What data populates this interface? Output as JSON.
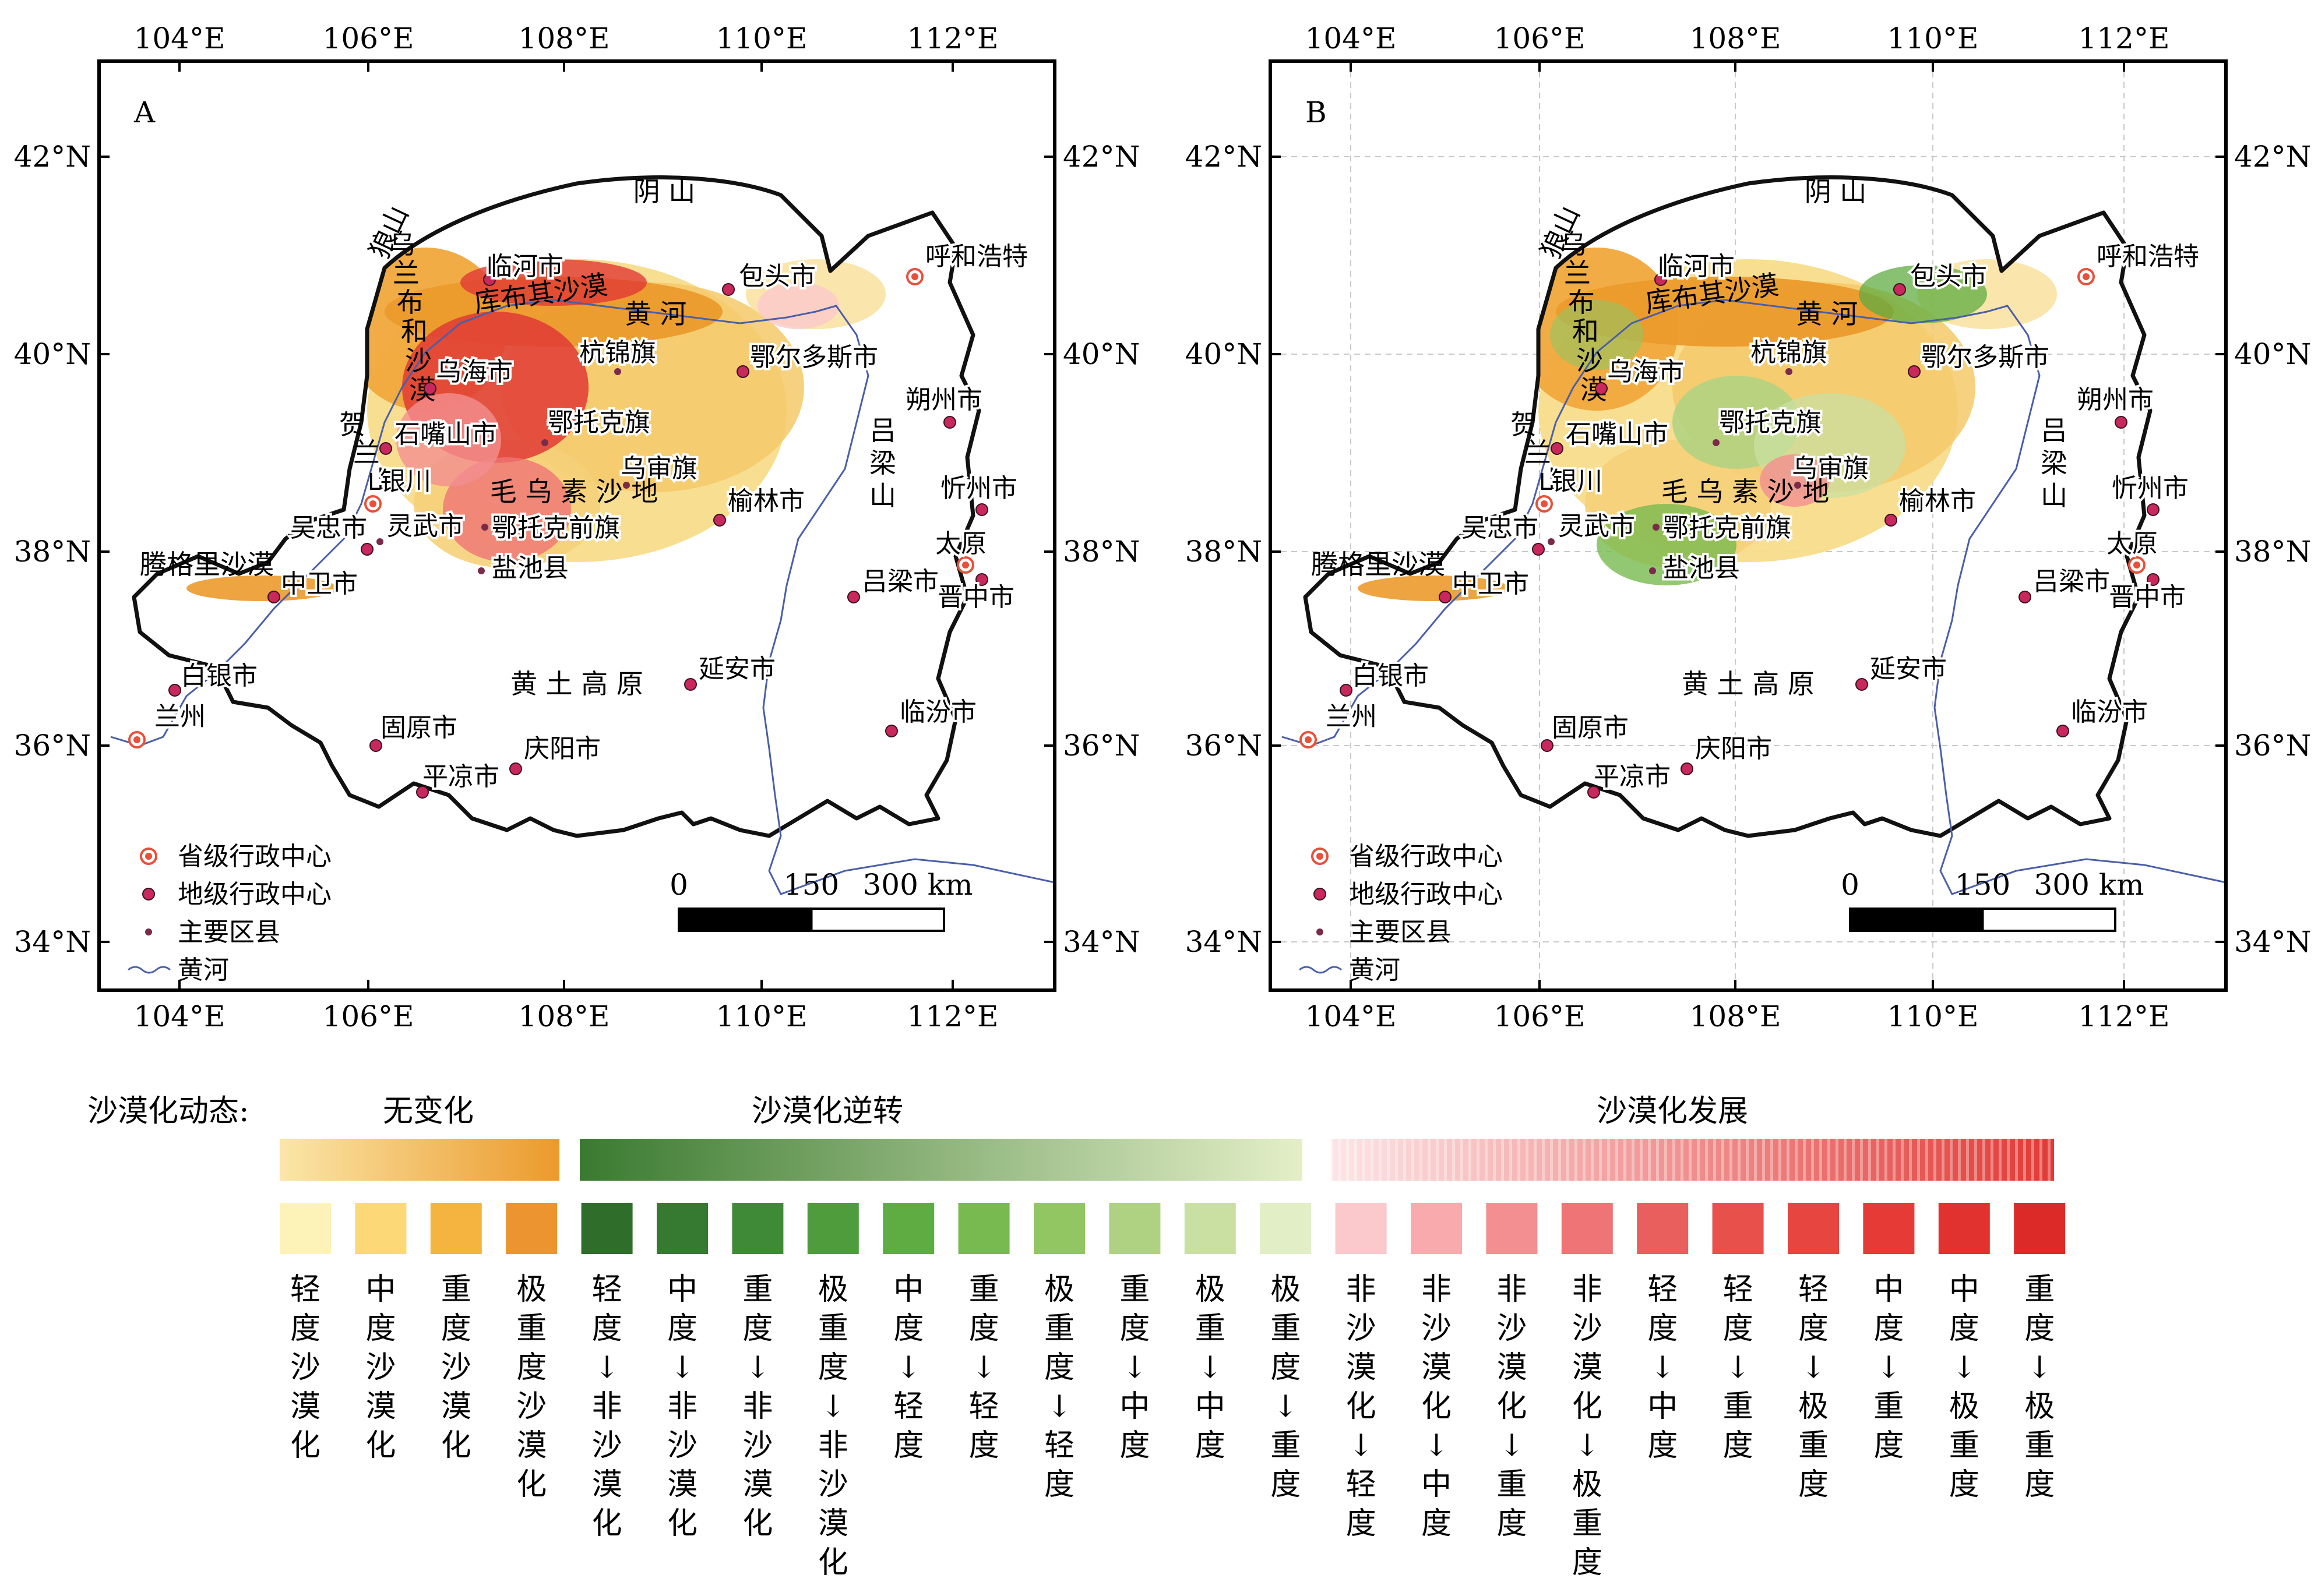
{
  "panels": [
    {
      "id": "A",
      "label": "A",
      "graticule": false
    },
    {
      "id": "B",
      "label": "B",
      "graticule": true
    }
  ],
  "axes": {
    "lon_ticks": [
      "104°E",
      "106°E",
      "108°E",
      "110°E",
      "112°E"
    ],
    "lat_ticks": [
      "42°N",
      "40°N",
      "38°N",
      "36°N",
      "34°N"
    ]
  },
  "features": {
    "yin_shan": "阴 山",
    "langshan": "狼山",
    "ulanbuh": "乌兰布和沙漠",
    "hobq": "库布其沙漠",
    "huanghe": "黄  河",
    "helan": "贺兰山",
    "mu_us": "毛 乌 素 沙 地",
    "tengger": "腾格里沙漠",
    "loess": "黄  土  高  原",
    "lvliang": "吕梁山"
  },
  "cities": [
    {
      "id": "linhe",
      "name": "临河市",
      "type": "prefecture"
    },
    {
      "id": "baotou",
      "name": "包头市",
      "type": "prefecture"
    },
    {
      "id": "hohhot",
      "name": "呼和浩特",
      "type": "provincial"
    },
    {
      "id": "hangjin",
      "name": "杭锦旗",
      "type": "county"
    },
    {
      "id": "ordos",
      "name": "鄂尔多斯市",
      "type": "prefecture"
    },
    {
      "id": "wuhai",
      "name": "乌海市",
      "type": "prefecture"
    },
    {
      "id": "otog",
      "name": "鄂托克旗",
      "type": "county"
    },
    {
      "id": "shizuishan",
      "name": "石嘴山市",
      "type": "prefecture"
    },
    {
      "id": "yinchuan",
      "name": "银川",
      "type": "provincial"
    },
    {
      "id": "wushen",
      "name": "乌审旗",
      "type": "county"
    },
    {
      "id": "yulin",
      "name": "榆林市",
      "type": "prefecture"
    },
    {
      "id": "wuzhong",
      "name": "吴忠市",
      "type": "prefecture"
    },
    {
      "id": "lingwu",
      "name": "灵武市",
      "type": "county"
    },
    {
      "id": "otogqian",
      "name": "鄂托克前旗",
      "type": "county"
    },
    {
      "id": "yanchi",
      "name": "盐池县",
      "type": "county"
    },
    {
      "id": "zhongwei",
      "name": "中卫市",
      "type": "prefecture"
    },
    {
      "id": "shuozhou",
      "name": "朔州市",
      "type": "prefecture"
    },
    {
      "id": "xinzhou",
      "name": "忻州市",
      "type": "prefecture"
    },
    {
      "id": "taiyuan",
      "name": "太原",
      "type": "provincial"
    },
    {
      "id": "jinzhong",
      "name": "晋中市",
      "type": "prefecture"
    },
    {
      "id": "lvliang_c",
      "name": "吕梁市",
      "type": "prefecture"
    },
    {
      "id": "yanan",
      "name": "延安市",
      "type": "prefecture"
    },
    {
      "id": "baiyin",
      "name": "白银市",
      "type": "prefecture"
    },
    {
      "id": "lanzhou",
      "name": "兰州",
      "type": "provincial"
    },
    {
      "id": "guyuan",
      "name": "固原市",
      "type": "prefecture"
    },
    {
      "id": "qingyang",
      "name": "庆阳市",
      "type": "prefecture"
    },
    {
      "id": "pingliang",
      "name": "平凉市",
      "type": "prefecture"
    },
    {
      "id": "linfen",
      "name": "临汾市",
      "type": "prefecture"
    }
  ],
  "legend": {
    "provincial": "省级行政中心",
    "prefecture": "地级行政中心",
    "county": "主要区县",
    "river": "黄河"
  },
  "scalebar": {
    "labels": [
      "0",
      "150",
      "300 km"
    ]
  },
  "colors": {
    "provincial": "#e8503a",
    "prefecture": "#c8285c",
    "county": "#7a2a4a",
    "river": "#4a5fa8",
    "boundary": "#111111"
  },
  "colorbar": {
    "title": "沙漠化动态:",
    "groups": [
      {
        "label": "无变化",
        "from": "#fbe6a8",
        "to": "#eb9a2c"
      },
      {
        "label": "沙漠化逆转",
        "from": "#3a7a30",
        "to": "#e4efc8"
      },
      {
        "label": "沙漠化发展",
        "from": "#fde4e6",
        "to": "#e13a35"
      }
    ],
    "classes": [
      {
        "text": "轻度沙漠化",
        "color": "#fdf3b8"
      },
      {
        "text": "中度沙漠化",
        "color": "#fcd877"
      },
      {
        "text": "重度沙漠化",
        "color": "#f4b43f"
      },
      {
        "text": "极重度沙漠化",
        "color": "#ec9530"
      },
      {
        "text": "轻度↓非沙漠化",
        "color": "#2f6e2a"
      },
      {
        "text": "中度↓非沙漠化",
        "color": "#357a30"
      },
      {
        "text": "重度↓非沙漠化",
        "color": "#3f8a36"
      },
      {
        "text": "极重度↓非沙漠化",
        "color": "#4e9c3b"
      },
      {
        "text": "中度↓轻度",
        "color": "#5fac42"
      },
      {
        "text": "重度↓轻度",
        "color": "#78ba4f"
      },
      {
        "text": "极重度↓轻度",
        "color": "#92c663"
      },
      {
        "text": "重度↓中度",
        "color": "#aed282"
      },
      {
        "text": "极重↓中度",
        "color": "#c9e0a2"
      },
      {
        "text": "极重度↓重度",
        "color": "#e2eec6"
      },
      {
        "text": "非沙漠化↓轻度",
        "color": "#fbc9cc"
      },
      {
        "text": "非沙漠化↓中度",
        "color": "#f8aaac"
      },
      {
        "text": "非沙漠化↓重度",
        "color": "#f38f90"
      },
      {
        "text": "非沙漠化↓极重度",
        "color": "#ee7476"
      },
      {
        "text": "轻度↓中度",
        "color": "#e95f5e"
      },
      {
        "text": "轻度↓重度",
        "color": "#e8504c"
      },
      {
        "text": "轻度↓极重度",
        "color": "#e74540"
      },
      {
        "text": "中度↓重度",
        "color": "#e53a36"
      },
      {
        "text": "中度↓极重度",
        "color": "#e1322f"
      },
      {
        "text": "重度↓极重度",
        "color": "#dc2a28"
      }
    ]
  }
}
